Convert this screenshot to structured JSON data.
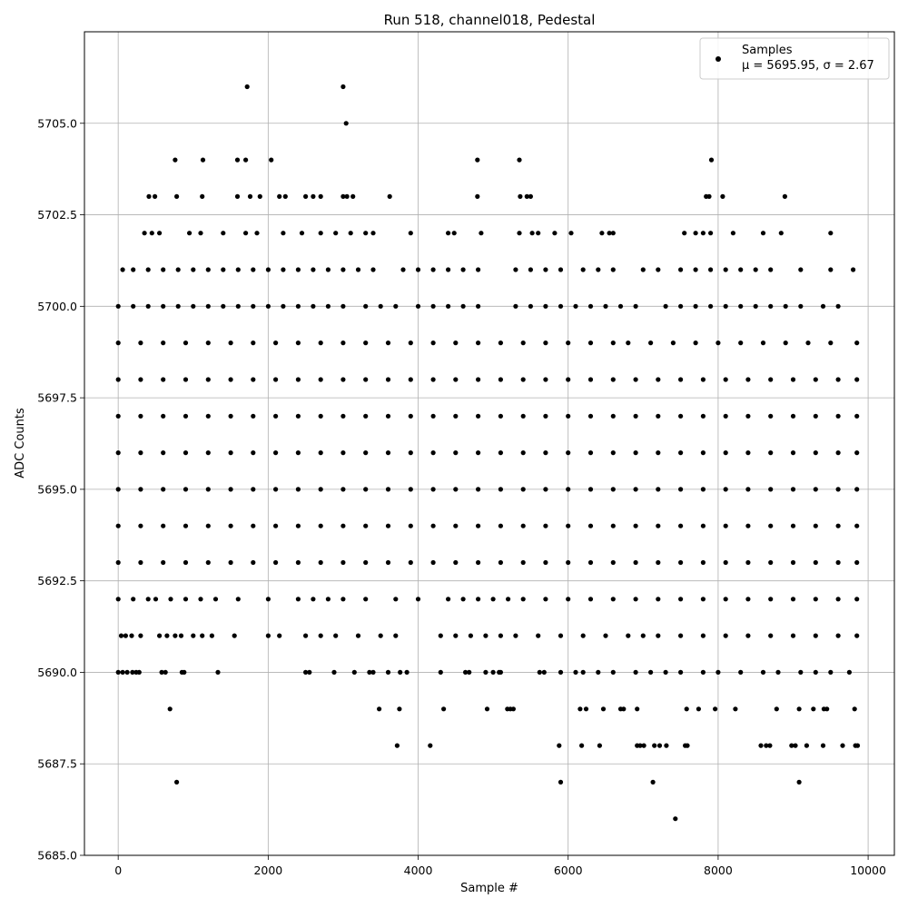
{
  "chart_data": {
    "type": "scatter",
    "title": "Run 518, channel018, Pedestal",
    "xlabel": "Sample #",
    "ylabel": "ADC Counts",
    "xlim": [
      -450,
      10350
    ],
    "ylim": [
      5685.0,
      5707.5
    ],
    "xticks": [
      "0",
      "2000",
      "4000",
      "6000",
      "8000",
      "10000"
    ],
    "yticks": [
      "5685.0",
      "5687.5",
      "5690.0",
      "5692.5",
      "5695.0",
      "5697.5",
      "5700.0",
      "5702.5",
      "5705.0"
    ],
    "grid": true,
    "legend_position": "top-right",
    "marker_color": "#000000",
    "series": [
      {
        "name": "Samples",
        "stats_label": "μ = 5695.95, σ = 2.67",
        "n_samples": 9900,
        "levels": [
          {
            "y": 5686,
            "x": [
              7430
            ]
          },
          {
            "y": 5687,
            "x": [
              780,
              5900,
              7130,
              9080
            ]
          },
          {
            "y": 5688,
            "x": [
              3720,
              4160,
              5880,
              6180,
              6420,
              6920,
              6960,
              7010,
              7150,
              7220,
              7310,
              7560,
              7590,
              8570,
              8640,
              8690,
              8980,
              9030,
              9180,
              9400,
              9660,
              9830,
              9860
            ]
          },
          {
            "y": 5689,
            "x": [
              690,
              3480,
              3750,
              4340,
              4920,
              5190,
              5230,
              5270,
              6160,
              6240,
              6470,
              6700,
              6740,
              6920,
              7580,
              7740,
              7960,
              8230,
              8780,
              9080,
              9270,
              9410,
              9450,
              9820
            ]
          },
          {
            "y": 5690,
            "x": [
              0,
              60,
              120,
              190,
              240,
              280,
              580,
              630,
              850,
              880,
              1330,
              2500,
              2550,
              2880,
              3150,
              3350,
              3400,
              3600,
              3760,
              3850,
              4300,
              4630,
              4680,
              4900,
              5000,
              5080,
              5100,
              5620,
              5680,
              5900,
              6100,
              6200,
              6400,
              6600,
              6900,
              7100,
              7300,
              7500,
              7800,
              8000,
              8300,
              8600,
              8800,
              9100,
              9300,
              9500,
              9750
            ]
          },
          {
            "y": 5691,
            "x": [
              40,
              100,
              180,
              300,
              550,
              650,
              760,
              840,
              1000,
              1120,
              1250,
              1550,
              2000,
              2150,
              2500,
              2700,
              2900,
              3200,
              3500,
              3700,
              4300,
              4500,
              4700,
              4900,
              5100,
              5300,
              5600,
              5900,
              6200,
              6500,
              6800,
              7000,
              7200,
              7500,
              7800,
              8100,
              8400,
              8700,
              9000,
              9300,
              9600,
              9850
            ]
          },
          {
            "y": 5692,
            "x": [
              0,
              200,
              400,
              500,
              700,
              900,
              1100,
              1300,
              1600,
              2000,
              2400,
              2600,
              2800,
              3000,
              3300,
              3700,
              4000,
              4400,
              4600,
              4800,
              5000,
              5200,
              5400,
              5700,
              6000,
              6300,
              6600,
              6900,
              7200,
              7500,
              7800,
              8100,
              8400,
              8700,
              9000,
              9300,
              9600,
              9850
            ]
          },
          {
            "y": 5693,
            "x": [
              0,
              300,
              600,
              900,
              1200,
              1500,
              1800,
              2100,
              2400,
              2700,
              3000,
              3300,
              3600,
              3900,
              4200,
              4500,
              4800,
              5100,
              5400,
              5700,
              6000,
              6300,
              6600,
              6900,
              7200,
              7500,
              7800,
              8100,
              8400,
              8700,
              9000,
              9300,
              9600,
              9850
            ]
          },
          {
            "y": 5694,
            "x": [
              0,
              300,
              600,
              900,
              1200,
              1500,
              1800,
              2100,
              2400,
              2700,
              3000,
              3300,
              3600,
              3900,
              4200,
              4500,
              4800,
              5100,
              5400,
              5700,
              6000,
              6300,
              6600,
              6900,
              7200,
              7500,
              7800,
              8100,
              8400,
              8700,
              9000,
              9300,
              9600,
              9850
            ]
          },
          {
            "y": 5695,
            "x": [
              0,
              300,
              600,
              900,
              1200,
              1500,
              1800,
              2100,
              2400,
              2700,
              3000,
              3300,
              3600,
              3900,
              4200,
              4500,
              4800,
              5100,
              5400,
              5700,
              6000,
              6300,
              6600,
              6900,
              7200,
              7500,
              7800,
              8100,
              8400,
              8700,
              9000,
              9300,
              9600,
              9850
            ]
          },
          {
            "y": 5696,
            "x": [
              0,
              300,
              600,
              900,
              1200,
              1500,
              1800,
              2100,
              2400,
              2700,
              3000,
              3300,
              3600,
              3900,
              4200,
              4500,
              4800,
              5100,
              5400,
              5700,
              6000,
              6300,
              6600,
              6900,
              7200,
              7500,
              7800,
              8100,
              8400,
              8700,
              9000,
              9300,
              9600,
              9850
            ]
          },
          {
            "y": 5697,
            "x": [
              0,
              300,
              600,
              900,
              1200,
              1500,
              1800,
              2100,
              2400,
              2700,
              3000,
              3300,
              3600,
              3900,
              4200,
              4500,
              4800,
              5100,
              5400,
              5700,
              6000,
              6300,
              6600,
              6900,
              7200,
              7500,
              7800,
              8100,
              8400,
              8700,
              9000,
              9300,
              9600,
              9850
            ]
          },
          {
            "y": 5698,
            "x": [
              0,
              300,
              600,
              900,
              1200,
              1500,
              1800,
              2100,
              2400,
              2700,
              3000,
              3300,
              3600,
              3900,
              4200,
              4500,
              4800,
              5100,
              5400,
              5700,
              6000,
              6300,
              6600,
              6900,
              7200,
              7500,
              7800,
              8100,
              8400,
              8700,
              9000,
              9300,
              9600,
              9850
            ]
          },
          {
            "y": 5699,
            "x": [
              0,
              300,
              600,
              900,
              1200,
              1500,
              1800,
              2100,
              2400,
              2700,
              3000,
              3300,
              3600,
              3900,
              4200,
              4500,
              4800,
              5100,
              5400,
              5700,
              6000,
              6300,
              6600,
              6800,
              7100,
              7400,
              7700,
              8000,
              8300,
              8600,
              8900,
              9200,
              9500,
              9850
            ]
          },
          {
            "y": 5700,
            "x": [
              0,
              200,
              400,
              600,
              800,
              1000,
              1200,
              1400,
              1600,
              1800,
              2000,
              2200,
              2400,
              2600,
              2800,
              3000,
              3300,
              3500,
              3700,
              4000,
              4200,
              4400,
              4600,
              4800,
              5300,
              5500,
              5700,
              5900,
              6100,
              6300,
              6500,
              6700,
              6900,
              7300,
              7500,
              7700,
              7900,
              8100,
              8300,
              8500,
              8700,
              8900,
              9100,
              9400,
              9600
            ]
          },
          {
            "y": 5701,
            "x": [
              60,
              200,
              400,
              600,
              800,
              1000,
              1200,
              1400,
              1600,
              1800,
              2000,
              2200,
              2400,
              2600,
              2800,
              3000,
              3200,
              3400,
              3800,
              4000,
              4200,
              4400,
              4600,
              4800,
              5300,
              5500,
              5700,
              5900,
              6200,
              6400,
              6600,
              7000,
              7200,
              7500,
              7700,
              7900,
              8100,
              8300,
              8500,
              8700,
              9100,
              9500,
              9800
            ]
          },
          {
            "y": 5702,
            "x": [
              350,
              450,
              550,
              950,
              1100,
              1400,
              1700,
              1850,
              2200,
              2450,
              2700,
              2900,
              3100,
              3300,
              3400,
              3900,
              4400,
              4480,
              4840,
              5350,
              5520,
              5600,
              5820,
              6040,
              6450,
              6550,
              6600,
              7550,
              7700,
              7800,
              7900,
              8200,
              8600,
              8840,
              9500
            ]
          },
          {
            "y": 5703,
            "x": [
              410,
              490,
              780,
              1120,
              1590,
              1760,
              1890,
              2150,
              2230,
              2500,
              2600,
              2700,
              3000,
              3050,
              3130,
              3620,
              4790,
              5360,
              5450,
              5500,
              7840,
              7880,
              8060,
              8890
            ]
          },
          {
            "y": 5704,
            "x": [
              760,
              1130,
              1590,
              1700,
              2040,
              4790,
              5350,
              7910
            ]
          },
          {
            "y": 5705,
            "x": [
              3040
            ]
          },
          {
            "y": 5706,
            "x": [
              1720,
              3000
            ]
          }
        ]
      }
    ]
  }
}
